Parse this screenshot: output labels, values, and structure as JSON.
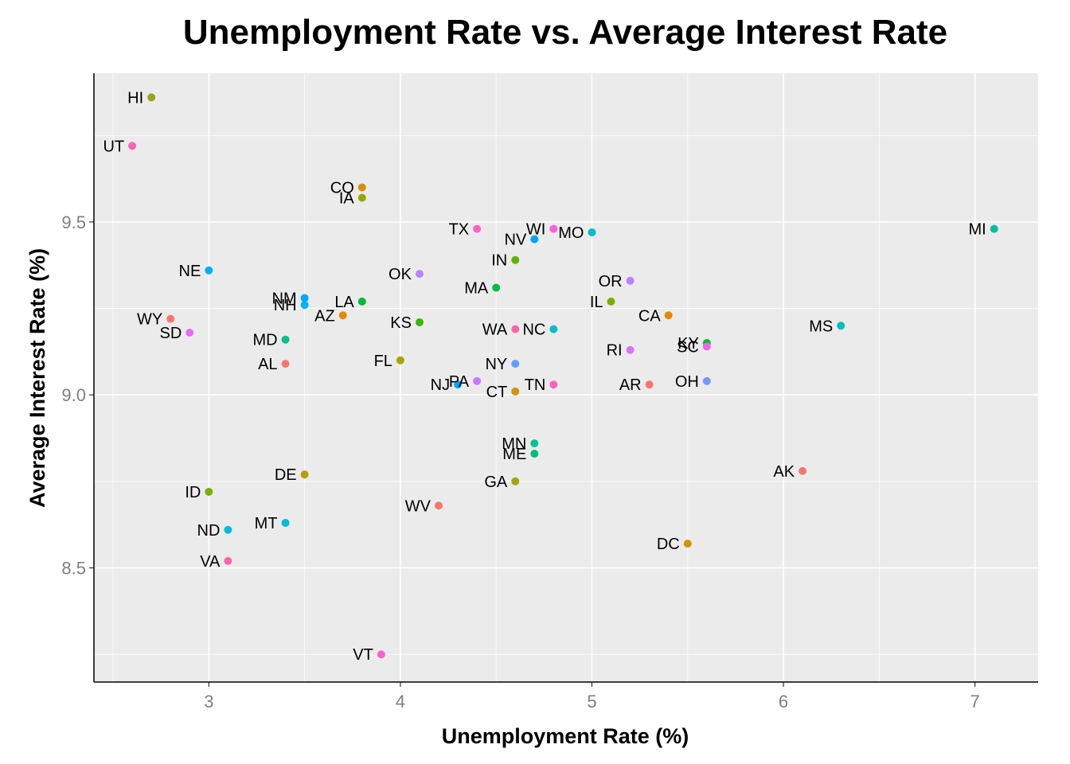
{
  "chart_data": {
    "type": "scatter",
    "title": "Unemployment Rate vs. Average Interest Rate",
    "xlabel": "Unemployment Rate (%)",
    "ylabel": "Average Interest Rate (%)",
    "xlim": [
      2.4,
      7.33
    ],
    "ylim": [
      8.17,
      9.93
    ],
    "xticks": [
      3,
      4,
      5,
      6,
      7
    ],
    "yticks": [
      8.5,
      9.0,
      9.5
    ],
    "ytick_labels": [
      "8.5",
      "9.0",
      "9.5"
    ],
    "grid": true,
    "panel_background": "#ebebeb",
    "grid_color": "#ffffff",
    "points": [
      {
        "label": "HI",
        "x": 2.7,
        "y": 9.86,
        "color": "#9aa31e"
      },
      {
        "label": "UT",
        "x": 2.6,
        "y": 9.72,
        "color": "#ff62bc"
      },
      {
        "label": "CO",
        "x": 3.8,
        "y": 9.6,
        "color": "#d39200"
      },
      {
        "label": "IA",
        "x": 3.8,
        "y": 9.57,
        "color": "#93aa00"
      },
      {
        "label": "TX",
        "x": 4.4,
        "y": 9.48,
        "color": "#ff61c3"
      },
      {
        "label": "WI",
        "x": 4.8,
        "y": 9.48,
        "color": "#fc61d5"
      },
      {
        "label": "NV",
        "x": 4.7,
        "y": 9.45,
        "color": "#00a5ff"
      },
      {
        "label": "MO",
        "x": 5.0,
        "y": 9.47,
        "color": "#00bfc4"
      },
      {
        "label": "MI",
        "x": 7.1,
        "y": 9.48,
        "color": "#00bfa0"
      },
      {
        "label": "IN",
        "x": 4.6,
        "y": 9.39,
        "color": "#5eb300"
      },
      {
        "label": "NE",
        "x": 3.0,
        "y": 9.36,
        "color": "#00b0f6"
      },
      {
        "label": "OK",
        "x": 4.1,
        "y": 9.35,
        "color": "#b983ff"
      },
      {
        "label": "OR",
        "x": 5.2,
        "y": 9.33,
        "color": "#b983ff"
      },
      {
        "label": "MA",
        "x": 4.5,
        "y": 9.31,
        "color": "#00bb4e"
      },
      {
        "label": "NM",
        "x": 3.5,
        "y": 9.28,
        "color": "#00a9ff"
      },
      {
        "label": "NH",
        "x": 3.5,
        "y": 9.26,
        "color": "#00b4f0"
      },
      {
        "label": "LA",
        "x": 3.8,
        "y": 9.27,
        "color": "#00ba38"
      },
      {
        "label": "IL",
        "x": 5.1,
        "y": 9.27,
        "color": "#7cae00"
      },
      {
        "label": "AZ",
        "x": 3.7,
        "y": 9.23,
        "color": "#e58700"
      },
      {
        "label": "WY",
        "x": 2.8,
        "y": 9.22,
        "color": "#f8766d"
      },
      {
        "label": "CA",
        "x": 5.4,
        "y": 9.23,
        "color": "#e38900"
      },
      {
        "label": "KS",
        "x": 4.1,
        "y": 9.21,
        "color": "#39b600"
      },
      {
        "label": "MS",
        "x": 6.3,
        "y": 9.2,
        "color": "#00c0b8"
      },
      {
        "label": "WA",
        "x": 4.6,
        "y": 9.19,
        "color": "#ff67a4"
      },
      {
        "label": "NC",
        "x": 4.8,
        "y": 9.19,
        "color": "#00bfc4"
      },
      {
        "label": "SD",
        "x": 2.9,
        "y": 9.18,
        "color": "#e76bf3"
      },
      {
        "label": "MD",
        "x": 3.4,
        "y": 9.16,
        "color": "#00c08b"
      },
      {
        "label": "KY",
        "x": 5.6,
        "y": 9.15,
        "color": "#00ba38"
      },
      {
        "label": "SC",
        "x": 5.6,
        "y": 9.14,
        "color": "#f066ea"
      },
      {
        "label": "RI",
        "x": 5.2,
        "y": 9.13,
        "color": "#dc71fa"
      },
      {
        "label": "FL",
        "x": 4.0,
        "y": 9.1,
        "color": "#a3a500"
      },
      {
        "label": "AL",
        "x": 3.4,
        "y": 9.09,
        "color": "#f8766d"
      },
      {
        "label": "NY",
        "x": 4.6,
        "y": 9.09,
        "color": "#619cff"
      },
      {
        "label": "PA",
        "x": 4.4,
        "y": 9.04,
        "color": "#c77cff"
      },
      {
        "label": "NJ",
        "x": 4.3,
        "y": 9.03,
        "color": "#00a9ff"
      },
      {
        "label": "OH",
        "x": 5.6,
        "y": 9.04,
        "color": "#7997ff"
      },
      {
        "label": "AR",
        "x": 5.3,
        "y": 9.03,
        "color": "#f8766d"
      },
      {
        "label": "TN",
        "x": 4.8,
        "y": 9.03,
        "color": "#ff62bc"
      },
      {
        "label": "CT",
        "x": 4.6,
        "y": 9.01,
        "color": "#d39200"
      },
      {
        "label": "MN",
        "x": 4.7,
        "y": 8.86,
        "color": "#00c19a"
      },
      {
        "label": "ME",
        "x": 4.7,
        "y": 8.83,
        "color": "#00bf7d"
      },
      {
        "label": "AK",
        "x": 6.1,
        "y": 8.78,
        "color": "#f8766d"
      },
      {
        "label": "DE",
        "x": 3.5,
        "y": 8.77,
        "color": "#b79f00"
      },
      {
        "label": "GA",
        "x": 4.6,
        "y": 8.75,
        "color": "#a3a500"
      },
      {
        "label": "ID",
        "x": 3.0,
        "y": 8.72,
        "color": "#7cae00"
      },
      {
        "label": "WV",
        "x": 4.2,
        "y": 8.68,
        "color": "#f8766d"
      },
      {
        "label": "MT",
        "x": 3.4,
        "y": 8.63,
        "color": "#00bcd8"
      },
      {
        "label": "ND",
        "x": 3.1,
        "y": 8.61,
        "color": "#00bcd8"
      },
      {
        "label": "DC",
        "x": 5.5,
        "y": 8.57,
        "color": "#d39200"
      },
      {
        "label": "VA",
        "x": 3.1,
        "y": 8.52,
        "color": "#ff65ac"
      },
      {
        "label": "VT",
        "x": 3.9,
        "y": 8.25,
        "color": "#ff61c9"
      }
    ]
  }
}
